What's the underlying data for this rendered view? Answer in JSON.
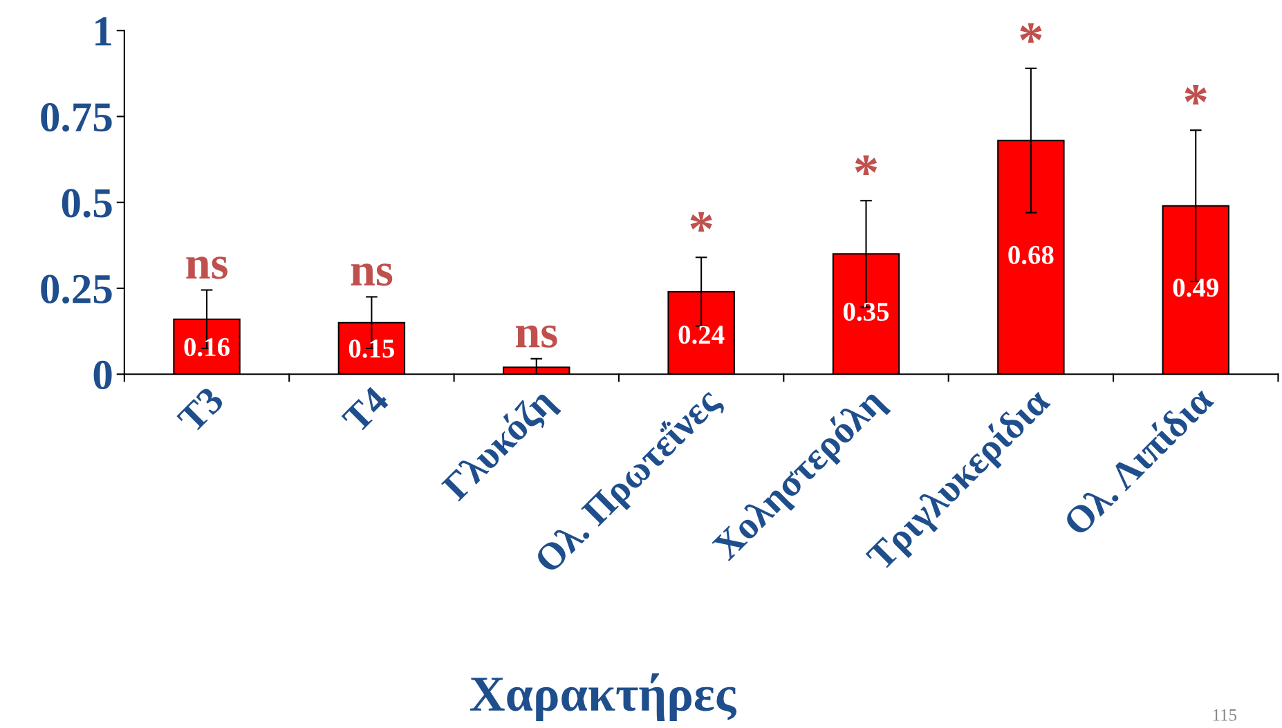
{
  "chart_data": {
    "type": "bar",
    "xlabel": "Χαρακτήρες",
    "categories": [
      "T3",
      "T4",
      "Γλυκόζη",
      "Ολ. Πρωτεΐνες",
      "Χοληστερόλη",
      "Τριγλυκερίδια",
      "Ολ. Λιπίδια"
    ],
    "values": [
      0.16,
      0.15,
      0.02,
      0.24,
      0.35,
      0.68,
      0.49
    ],
    "value_labels": [
      "0.16",
      "0.15",
      null,
      "0.24",
      "0.35",
      "0.68",
      "0.49"
    ],
    "errors": [
      0.085,
      0.075,
      0.025,
      0.1,
      0.155,
      0.21,
      0.22
    ],
    "color": "#ff0000",
    "ylim": [
      0,
      1
    ],
    "yticks": [
      0,
      0.25,
      0.5,
      0.75,
      1
    ],
    "grid": false,
    "annotations": [
      "ns",
      "ns",
      "ns",
      "*",
      "*",
      "*",
      "*",
      "115"
    ]
  }
}
